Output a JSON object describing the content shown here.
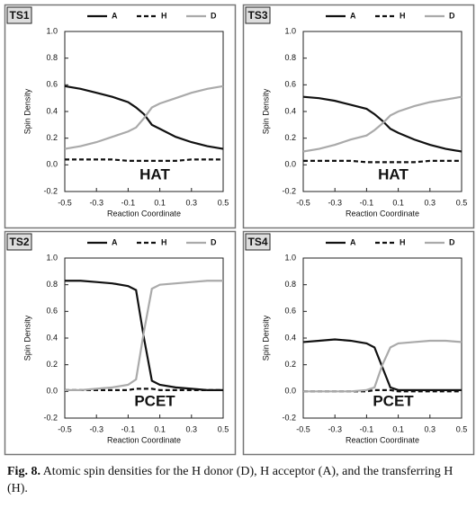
{
  "chart_data": [
    {
      "type": "line",
      "title": "TS1",
      "annotation": "HAT",
      "xlabel": "Reaction Coordinate",
      "ylabel": "Spin Density",
      "x": [
        -0.5,
        -0.4,
        -0.3,
        -0.2,
        -0.1,
        -0.05,
        0,
        0.05,
        0.1,
        0.2,
        0.3,
        0.4,
        0.5
      ],
      "series": [
        {
          "name": "A",
          "color": "#111111",
          "dashed": false,
          "values": [
            0.59,
            0.57,
            0.54,
            0.51,
            0.47,
            0.43,
            0.38,
            0.3,
            0.27,
            0.21,
            0.17,
            0.14,
            0.12
          ]
        },
        {
          "name": "H",
          "color": "#111111",
          "dashed": true,
          "values": [
            0.04,
            0.04,
            0.04,
            0.04,
            0.03,
            0.03,
            0.03,
            0.03,
            0.03,
            0.03,
            0.04,
            0.04,
            0.04
          ]
        },
        {
          "name": "D",
          "color": "#aaaaaa",
          "dashed": false,
          "values": [
            0.12,
            0.14,
            0.17,
            0.21,
            0.25,
            0.28,
            0.35,
            0.43,
            0.46,
            0.5,
            0.54,
            0.57,
            0.59
          ]
        }
      ],
      "xlim": [
        -0.5,
        0.5
      ],
      "xticks": [
        -0.5,
        -0.3,
        -0.1,
        0.1,
        0.3,
        0.5
      ],
      "ylim": [
        -0.2,
        1.0
      ],
      "yticks": [
        -0.2,
        {
          "value": 0,
          "label": "0.0"
        },
        0.2,
        0.4,
        0.6,
        0.8,
        {
          "value": 1.0,
          "label": "1.0"
        }
      ]
    },
    {
      "type": "line",
      "title": "TS3",
      "annotation": "HAT",
      "xlabel": "Reaction Coordinate",
      "ylabel": "Spin Density",
      "x": [
        -0.5,
        -0.4,
        -0.3,
        -0.2,
        -0.1,
        -0.05,
        0,
        0.05,
        0.1,
        0.2,
        0.3,
        0.4,
        0.5
      ],
      "series": [
        {
          "name": "A",
          "color": "#111111",
          "dashed": false,
          "values": [
            0.51,
            0.5,
            0.48,
            0.45,
            0.42,
            0.38,
            0.33,
            0.27,
            0.24,
            0.19,
            0.15,
            0.12,
            0.1
          ]
        },
        {
          "name": "H",
          "color": "#111111",
          "dashed": true,
          "values": [
            0.03,
            0.03,
            0.03,
            0.03,
            0.02,
            0.02,
            0.02,
            0.02,
            0.02,
            0.02,
            0.03,
            0.03,
            0.03
          ]
        },
        {
          "name": "D",
          "color": "#aaaaaa",
          "dashed": false,
          "values": [
            0.1,
            0.12,
            0.15,
            0.19,
            0.22,
            0.26,
            0.31,
            0.37,
            0.4,
            0.44,
            0.47,
            0.49,
            0.51
          ]
        }
      ],
      "xlim": [
        -0.5,
        0.5
      ],
      "xticks": [
        -0.5,
        -0.3,
        -0.1,
        0.1,
        0.3,
        0.5
      ],
      "ylim": [
        -0.2,
        1.0
      ],
      "yticks": [
        -0.2,
        {
          "value": 0,
          "label": "0.0"
        },
        0.2,
        0.4,
        0.6,
        0.8,
        {
          "value": 1.0,
          "label": "1.0"
        }
      ]
    },
    {
      "type": "line",
      "title": "TS2",
      "annotation": "PCET",
      "xlabel": "Reaction Coordinate",
      "ylabel": "Spin Density",
      "x": [
        -0.5,
        -0.4,
        -0.3,
        -0.2,
        -0.1,
        -0.05,
        0,
        0.05,
        0.1,
        0.2,
        0.3,
        0.4,
        0.5
      ],
      "series": [
        {
          "name": "A",
          "color": "#111111",
          "dashed": false,
          "values": [
            0.83,
            0.83,
            0.82,
            0.81,
            0.79,
            0.76,
            0.4,
            0.08,
            0.05,
            0.03,
            0.02,
            0.01,
            0.01
          ]
        },
        {
          "name": "H",
          "color": "#111111",
          "dashed": true,
          "values": [
            0.01,
            0.01,
            0.01,
            0.01,
            0.01,
            0.02,
            0.02,
            0.02,
            0.01,
            0.01,
            0.01,
            0.01,
            0.01
          ]
        },
        {
          "name": "D",
          "color": "#aaaaaa",
          "dashed": false,
          "values": [
            0.01,
            0.01,
            0.02,
            0.03,
            0.05,
            0.09,
            0.45,
            0.77,
            0.8,
            0.81,
            0.82,
            0.83,
            0.83
          ]
        }
      ],
      "xlim": [
        -0.5,
        0.5
      ],
      "xticks": [
        -0.5,
        -0.3,
        -0.1,
        0.1,
        0.3,
        0.5
      ],
      "ylim": [
        -0.2,
        1.0
      ],
      "yticks": [
        -0.2,
        {
          "value": 0,
          "label": "0.0"
        },
        0.2,
        0.4,
        0.6,
        0.8,
        {
          "value": 1.0,
          "label": "1.0"
        }
      ]
    },
    {
      "type": "line",
      "title": "TS4",
      "annotation": "PCET",
      "xlabel": "Reaction Coordinate",
      "ylabel": "Spin Density",
      "x": [
        -0.5,
        -0.4,
        -0.3,
        -0.2,
        -0.1,
        -0.05,
        0,
        0.05,
        0.1,
        0.2,
        0.3,
        0.4,
        0.5
      ],
      "series": [
        {
          "name": "A",
          "color": "#111111",
          "dashed": false,
          "values": [
            0.37,
            0.38,
            0.39,
            0.38,
            0.36,
            0.33,
            0.18,
            0.03,
            0.01,
            0.01,
            0.01,
            0.01,
            0.01
          ]
        },
        {
          "name": "H",
          "color": "#111111",
          "dashed": true,
          "values": [
            0,
            0,
            0,
            0,
            0,
            0.01,
            0.01,
            0.01,
            0,
            0,
            0,
            0,
            0
          ]
        },
        {
          "name": "D",
          "color": "#aaaaaa",
          "dashed": false,
          "values": [
            0,
            0,
            0,
            0,
            0.01,
            0.03,
            0.2,
            0.33,
            0.36,
            0.37,
            0.38,
            0.38,
            0.37
          ]
        }
      ],
      "xlim": [
        -0.5,
        0.5
      ],
      "xticks": [
        -0.5,
        -0.3,
        -0.1,
        0.1,
        0.3,
        0.5
      ],
      "ylim": [
        -0.2,
        1.0
      ],
      "yticks": [
        -0.2,
        {
          "value": 0,
          "label": "0.0"
        },
        0.2,
        0.4,
        0.6,
        0.8,
        {
          "value": 1.0,
          "label": "1.0"
        }
      ]
    }
  ],
  "caption": {
    "label": "Fig. 8.",
    "text": "Atomic spin densities for the H donor (D), H acceptor (A), and the transferring H (H)."
  }
}
